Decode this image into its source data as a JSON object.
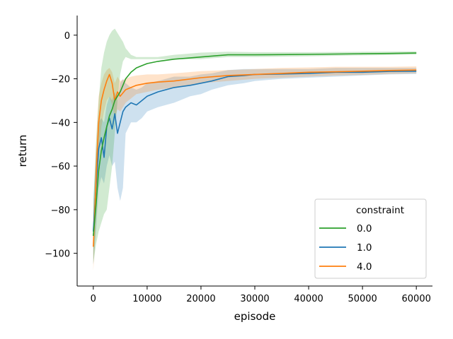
{
  "chart_data": {
    "type": "line",
    "xlabel": "episode",
    "ylabel": "return",
    "xlim": [
      -3000,
      63000
    ],
    "ylim": [
      -115,
      9
    ],
    "xticks": [
      0,
      10000,
      20000,
      30000,
      40000,
      50000,
      60000
    ],
    "xtick_labels": [
      "0",
      "10000",
      "20000",
      "30000",
      "40000",
      "50000",
      "60000"
    ],
    "yticks": [
      0,
      -20,
      -40,
      -60,
      -80,
      -100
    ],
    "ytick_labels": [
      "0",
      "−20",
      "−40",
      "−60",
      "−80",
      "−100"
    ],
    "grid": false,
    "legend": {
      "title": "constraint",
      "placement": "lower-right"
    },
    "series": [
      {
        "name": "0.0",
        "color": "#2ca02c",
        "points": [
          [
            0,
            -92
          ],
          [
            500,
            -78
          ],
          [
            1000,
            -62
          ],
          [
            1500,
            -53
          ],
          [
            2000,
            -47
          ],
          [
            2500,
            -42
          ],
          [
            3000,
            -37
          ],
          [
            3500,
            -34
          ],
          [
            4000,
            -30
          ],
          [
            4500,
            -28
          ],
          [
            5000,
            -26
          ],
          [
            5500,
            -23
          ],
          [
            6000,
            -20
          ],
          [
            7000,
            -17
          ],
          [
            8000,
            -15
          ],
          [
            9000,
            -14
          ],
          [
            10000,
            -13
          ],
          [
            12000,
            -12
          ],
          [
            15000,
            -11
          ],
          [
            20000,
            -10
          ],
          [
            25000,
            -9
          ],
          [
            30000,
            -9
          ],
          [
            40000,
            -8.8
          ],
          [
            50000,
            -8.5
          ],
          [
            55000,
            -8.4
          ],
          [
            60000,
            -8.2
          ]
        ],
        "band_lower": [
          -105,
          -96,
          -90,
          -86,
          -82,
          -80,
          -70,
          -60,
          -45,
          -30,
          -18,
          -12,
          -10,
          -11,
          -11,
          -11,
          -11,
          -11,
          -11,
          -11,
          -10,
          -10,
          -9.7,
          -9.3,
          -9.1,
          -8.9
        ],
        "band_upper": [
          -80,
          -50,
          -30,
          -15,
          -8,
          -3,
          0,
          2,
          3,
          1,
          -1,
          -3,
          -6,
          -9,
          -10,
          -10,
          -10,
          -10,
          -9,
          -8,
          -7.6,
          -7.8,
          -7.8,
          -7.6,
          -7.5,
          -7.4
        ]
      },
      {
        "name": "1.0",
        "color": "#1f77b4",
        "points": [
          [
            0,
            -90
          ],
          [
            500,
            -70
          ],
          [
            1000,
            -52
          ],
          [
            1500,
            -47
          ],
          [
            2000,
            -56
          ],
          [
            2500,
            -42
          ],
          [
            3000,
            -38
          ],
          [
            3500,
            -43
          ],
          [
            4000,
            -36
          ],
          [
            4500,
            -45
          ],
          [
            5000,
            -40
          ],
          [
            5500,
            -35
          ],
          [
            6000,
            -33
          ],
          [
            7000,
            -31
          ],
          [
            8000,
            -32
          ],
          [
            9000,
            -30
          ],
          [
            10000,
            -28
          ],
          [
            12000,
            -26
          ],
          [
            15000,
            -24
          ],
          [
            18000,
            -23
          ],
          [
            20000,
            -22
          ],
          [
            22000,
            -21
          ],
          [
            25000,
            -19
          ],
          [
            28000,
            -18.5
          ],
          [
            30000,
            -18
          ],
          [
            35000,
            -17.8
          ],
          [
            40000,
            -17.5
          ],
          [
            45000,
            -17
          ],
          [
            50000,
            -17
          ],
          [
            55000,
            -16.6
          ],
          [
            60000,
            -16.5
          ]
        ],
        "band_lower": [
          -105,
          -90,
          -70,
          -65,
          -68,
          -60,
          -55,
          -60,
          -58,
          -70,
          -76,
          -70,
          -45,
          -40,
          -40,
          -38,
          -35,
          -33,
          -31,
          -28,
          -27,
          -25,
          -23,
          -22,
          -21,
          -20,
          -19.5,
          -19,
          -18.5,
          -18,
          -17.8
        ],
        "band_upper": [
          -75,
          -55,
          -40,
          -38,
          -40,
          -32,
          -28,
          -30,
          -26,
          -30,
          -22,
          -20,
          -22,
          -24,
          -25,
          -24,
          -22,
          -21,
          -19,
          -19,
          -18,
          -17.5,
          -16,
          -15.5,
          -15.5,
          -15.5,
          -15.5,
          -15,
          -15,
          -15,
          -15
        ]
      },
      {
        "name": "4.0",
        "color": "#ff7f0e",
        "points": [
          [
            0,
            -97
          ],
          [
            300,
            -80
          ],
          [
            700,
            -55
          ],
          [
            1000,
            -40
          ],
          [
            1500,
            -30
          ],
          [
            2000,
            -25
          ],
          [
            2500,
            -21
          ],
          [
            3000,
            -18
          ],
          [
            3500,
            -22
          ],
          [
            4000,
            -30
          ],
          [
            4500,
            -26
          ],
          [
            5000,
            -28
          ],
          [
            6000,
            -25
          ],
          [
            7000,
            -24
          ],
          [
            8000,
            -23
          ],
          [
            10000,
            -22
          ],
          [
            12000,
            -21.5
          ],
          [
            15000,
            -21
          ],
          [
            20000,
            -19.5
          ],
          [
            25000,
            -18.5
          ],
          [
            30000,
            -18
          ],
          [
            35000,
            -17.5
          ],
          [
            40000,
            -17
          ],
          [
            45000,
            -16.8
          ],
          [
            50000,
            -16.5
          ],
          [
            55000,
            -16.2
          ],
          [
            60000,
            -16
          ]
        ],
        "band_lower": [
          -108,
          -95,
          -75,
          -55,
          -42,
          -35,
          -30,
          -28,
          -32,
          -38,
          -34,
          -35,
          -31,
          -29,
          -27,
          -26,
          -25,
          -24,
          -22,
          -21,
          -20,
          -19.5,
          -19,
          -18.5,
          -18.2,
          -17.8,
          -17.5
        ],
        "band_upper": [
          -85,
          -62,
          -40,
          -28,
          -22,
          -18,
          -16,
          -15,
          -17,
          -22,
          -19,
          -21,
          -20,
          -19,
          -18.5,
          -18,
          -18,
          -17.5,
          -16.5,
          -16,
          -15.5,
          -15,
          -14.8,
          -14.5,
          -14.5,
          -14.5,
          -14.3
        ]
      }
    ]
  }
}
